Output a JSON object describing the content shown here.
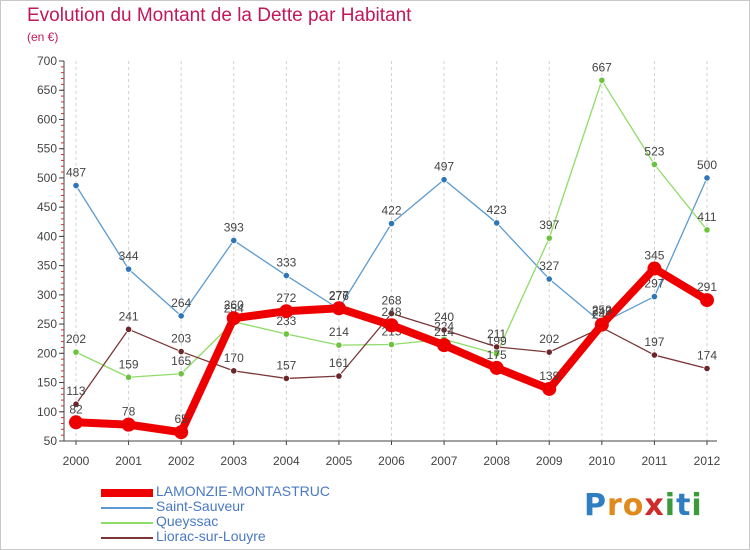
{
  "title": "Evolution du Montant de la Dette par Habitant",
  "subtitle": "(en €)",
  "logo": {
    "text": "Proxiti",
    "letters": [
      "P",
      "r",
      "o",
      "x",
      "i",
      "t",
      "i"
    ],
    "colors": [
      "#2f7ec1",
      "#e08a1c",
      "#e08a1c",
      "#d02b2b",
      "#3b9a3b",
      "#2f7ec1",
      "#3b9a3b"
    ]
  },
  "colors": {
    "title": "#c2185b",
    "axis": "#444444",
    "grid": "#d0d0d0"
  },
  "chart_data": {
    "type": "line",
    "x": [
      "2000",
      "2001",
      "2002",
      "2003",
      "2004",
      "2005",
      "2006",
      "2007",
      "2008",
      "2009",
      "2010",
      "2011",
      "2012"
    ],
    "ylim": [
      50,
      700
    ],
    "yticks": [
      50,
      100,
      150,
      200,
      250,
      300,
      350,
      400,
      450,
      500,
      550,
      600,
      650,
      700
    ],
    "grid": "vertical",
    "legend_position": "bottom-left",
    "series": [
      {
        "name": "Saint-Sauveur",
        "color": "#5b9bd0",
        "marker": "#2f75b8",
        "values": [
          487,
          344,
          264,
          393,
          333,
          276,
          422,
          497,
          423,
          327,
          252,
          297,
          500
        ],
        "labels": [
          "487",
          "344",
          "264",
          "393",
          "333",
          "276",
          "422",
          "497",
          "423",
          "327",
          "252",
          "297",
          "500"
        ]
      },
      {
        "name": "Queyssac",
        "color": "#8fdc68",
        "marker": "#6cc33e",
        "values": [
          202,
          159,
          165,
          254,
          233,
          214,
          215,
          224,
          199,
          397,
          667,
          523,
          411
        ],
        "labels": [
          "202",
          "159",
          "165",
          "254",
          "233",
          "214",
          "215",
          "224",
          "199",
          "397",
          "667",
          "523",
          "411"
        ]
      },
      {
        "name": "Liorac-sur-Louyre",
        "color": "#7b3737",
        "marker": "#6b2727",
        "values": [
          113,
          241,
          203,
          170,
          157,
          161,
          268,
          240,
          211,
          202,
          244,
          197,
          174
        ],
        "labels": [
          "113",
          "241",
          "203",
          "170",
          "157",
          "161",
          "268",
          "240",
          "211",
          "202",
          "244",
          "197",
          "174"
        ]
      },
      {
        "name": "LAMONZIE-MONTASTRUC",
        "color": "#ee0000",
        "marker": "#ee0000",
        "values": [
          82,
          78,
          65,
          260,
          272,
          277,
          248,
          214,
          175,
          139,
          249,
          345,
          291
        ],
        "labels": [
          "82",
          "78",
          "65",
          "260",
          "272",
          "277",
          "248",
          "214",
          "175",
          "139",
          "249",
          "345",
          "291"
        ]
      }
    ],
    "legend_order": [
      "LAMONZIE-MONTASTRUC",
      "Saint-Sauveur",
      "Queyssac",
      "Liorac-sur-Louyre"
    ]
  }
}
